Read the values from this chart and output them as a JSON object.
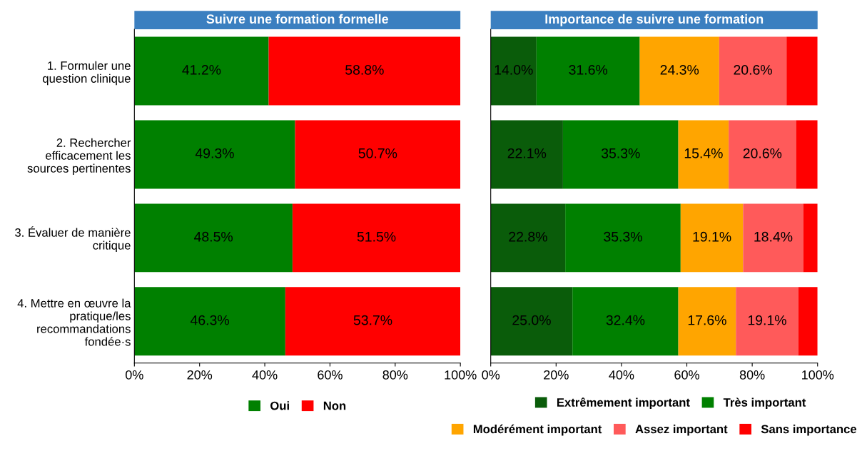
{
  "chart_data": [
    {
      "type": "bar",
      "orientation": "horizontal",
      "stacked": true,
      "title": "Suivre une formation formelle",
      "categories": [
        "1. Formuler une\nquestion clinique",
        "2. Rechercher\nefficacement les\nsources pertinentes",
        "3. Évaluer de manière\ncritique",
        "4. Mettre en œuvre la\npratique/les\nrecommandations\nfondée·s"
      ],
      "series": [
        {
          "name": "Oui",
          "color": "#008000",
          "values": [
            41.2,
            49.3,
            48.5,
            46.3
          ],
          "value_labels": [
            "41.2%",
            "49.3%",
            "48.5%",
            "46.3%"
          ]
        },
        {
          "name": "Non",
          "color": "#ff0000",
          "values": [
            58.8,
            50.7,
            51.5,
            53.7
          ],
          "value_labels": [
            "58.8%",
            "50.7%",
            "51.5%",
            "53.7%"
          ]
        }
      ],
      "xlim": [
        0,
        100
      ],
      "xticks": [
        {
          "value": 0,
          "label": "0%"
        },
        {
          "value": 20,
          "label": "20%"
        },
        {
          "value": 40,
          "label": "40%"
        },
        {
          "value": 60,
          "label": "60%"
        },
        {
          "value": 80,
          "label": "80%"
        },
        {
          "value": 100,
          "label": "100%"
        }
      ],
      "grid": false,
      "legend": "bottom"
    },
    {
      "type": "bar",
      "orientation": "horizontal",
      "stacked": true,
      "title": "Importance de suivre une formation",
      "categories": [
        null,
        null,
        null,
        null
      ],
      "series": [
        {
          "name": "Extrêmement important",
          "color": "#0a5c0a",
          "values": [
            14.0,
            22.1,
            22.8,
            25.0
          ],
          "value_labels": [
            "14.0%",
            "22.1%",
            "22.8%",
            "25.0%"
          ]
        },
        {
          "name": "Très important",
          "color": "#008000",
          "values": [
            31.6,
            35.3,
            35.3,
            32.4
          ],
          "value_labels": [
            "31.6%",
            "35.3%",
            "35.3%",
            "32.4%"
          ]
        },
        {
          "name": "Modérément important",
          "color": "#ffa500",
          "values": [
            24.3,
            15.4,
            19.1,
            17.6
          ],
          "value_labels": [
            "24.3%",
            "15.4%",
            "19.1%",
            "17.6%"
          ]
        },
        {
          "name": "Assez important",
          "color": "#ff5a5a",
          "values": [
            20.6,
            20.6,
            18.4,
            19.1
          ],
          "value_labels": [
            "20.6%",
            "20.6%",
            "18.4%",
            "19.1%"
          ]
        },
        {
          "name": "Sans importance",
          "color": "#ff0000",
          "values": [
            9.5,
            6.6,
            4.4,
            5.9
          ],
          "value_labels": [
            null,
            null,
            null,
            null
          ]
        }
      ],
      "xlim": [
        0,
        100
      ],
      "xticks": [
        {
          "value": 0,
          "label": "0%"
        },
        {
          "value": 20,
          "label": "20%"
        },
        {
          "value": 40,
          "label": "40%"
        },
        {
          "value": 60,
          "label": "60%"
        },
        {
          "value": 80,
          "label": "80%"
        },
        {
          "value": 100,
          "label": "100%"
        }
      ],
      "tick_labels": "x",
      "grid": false,
      "legend": "bottom"
    }
  ]
}
